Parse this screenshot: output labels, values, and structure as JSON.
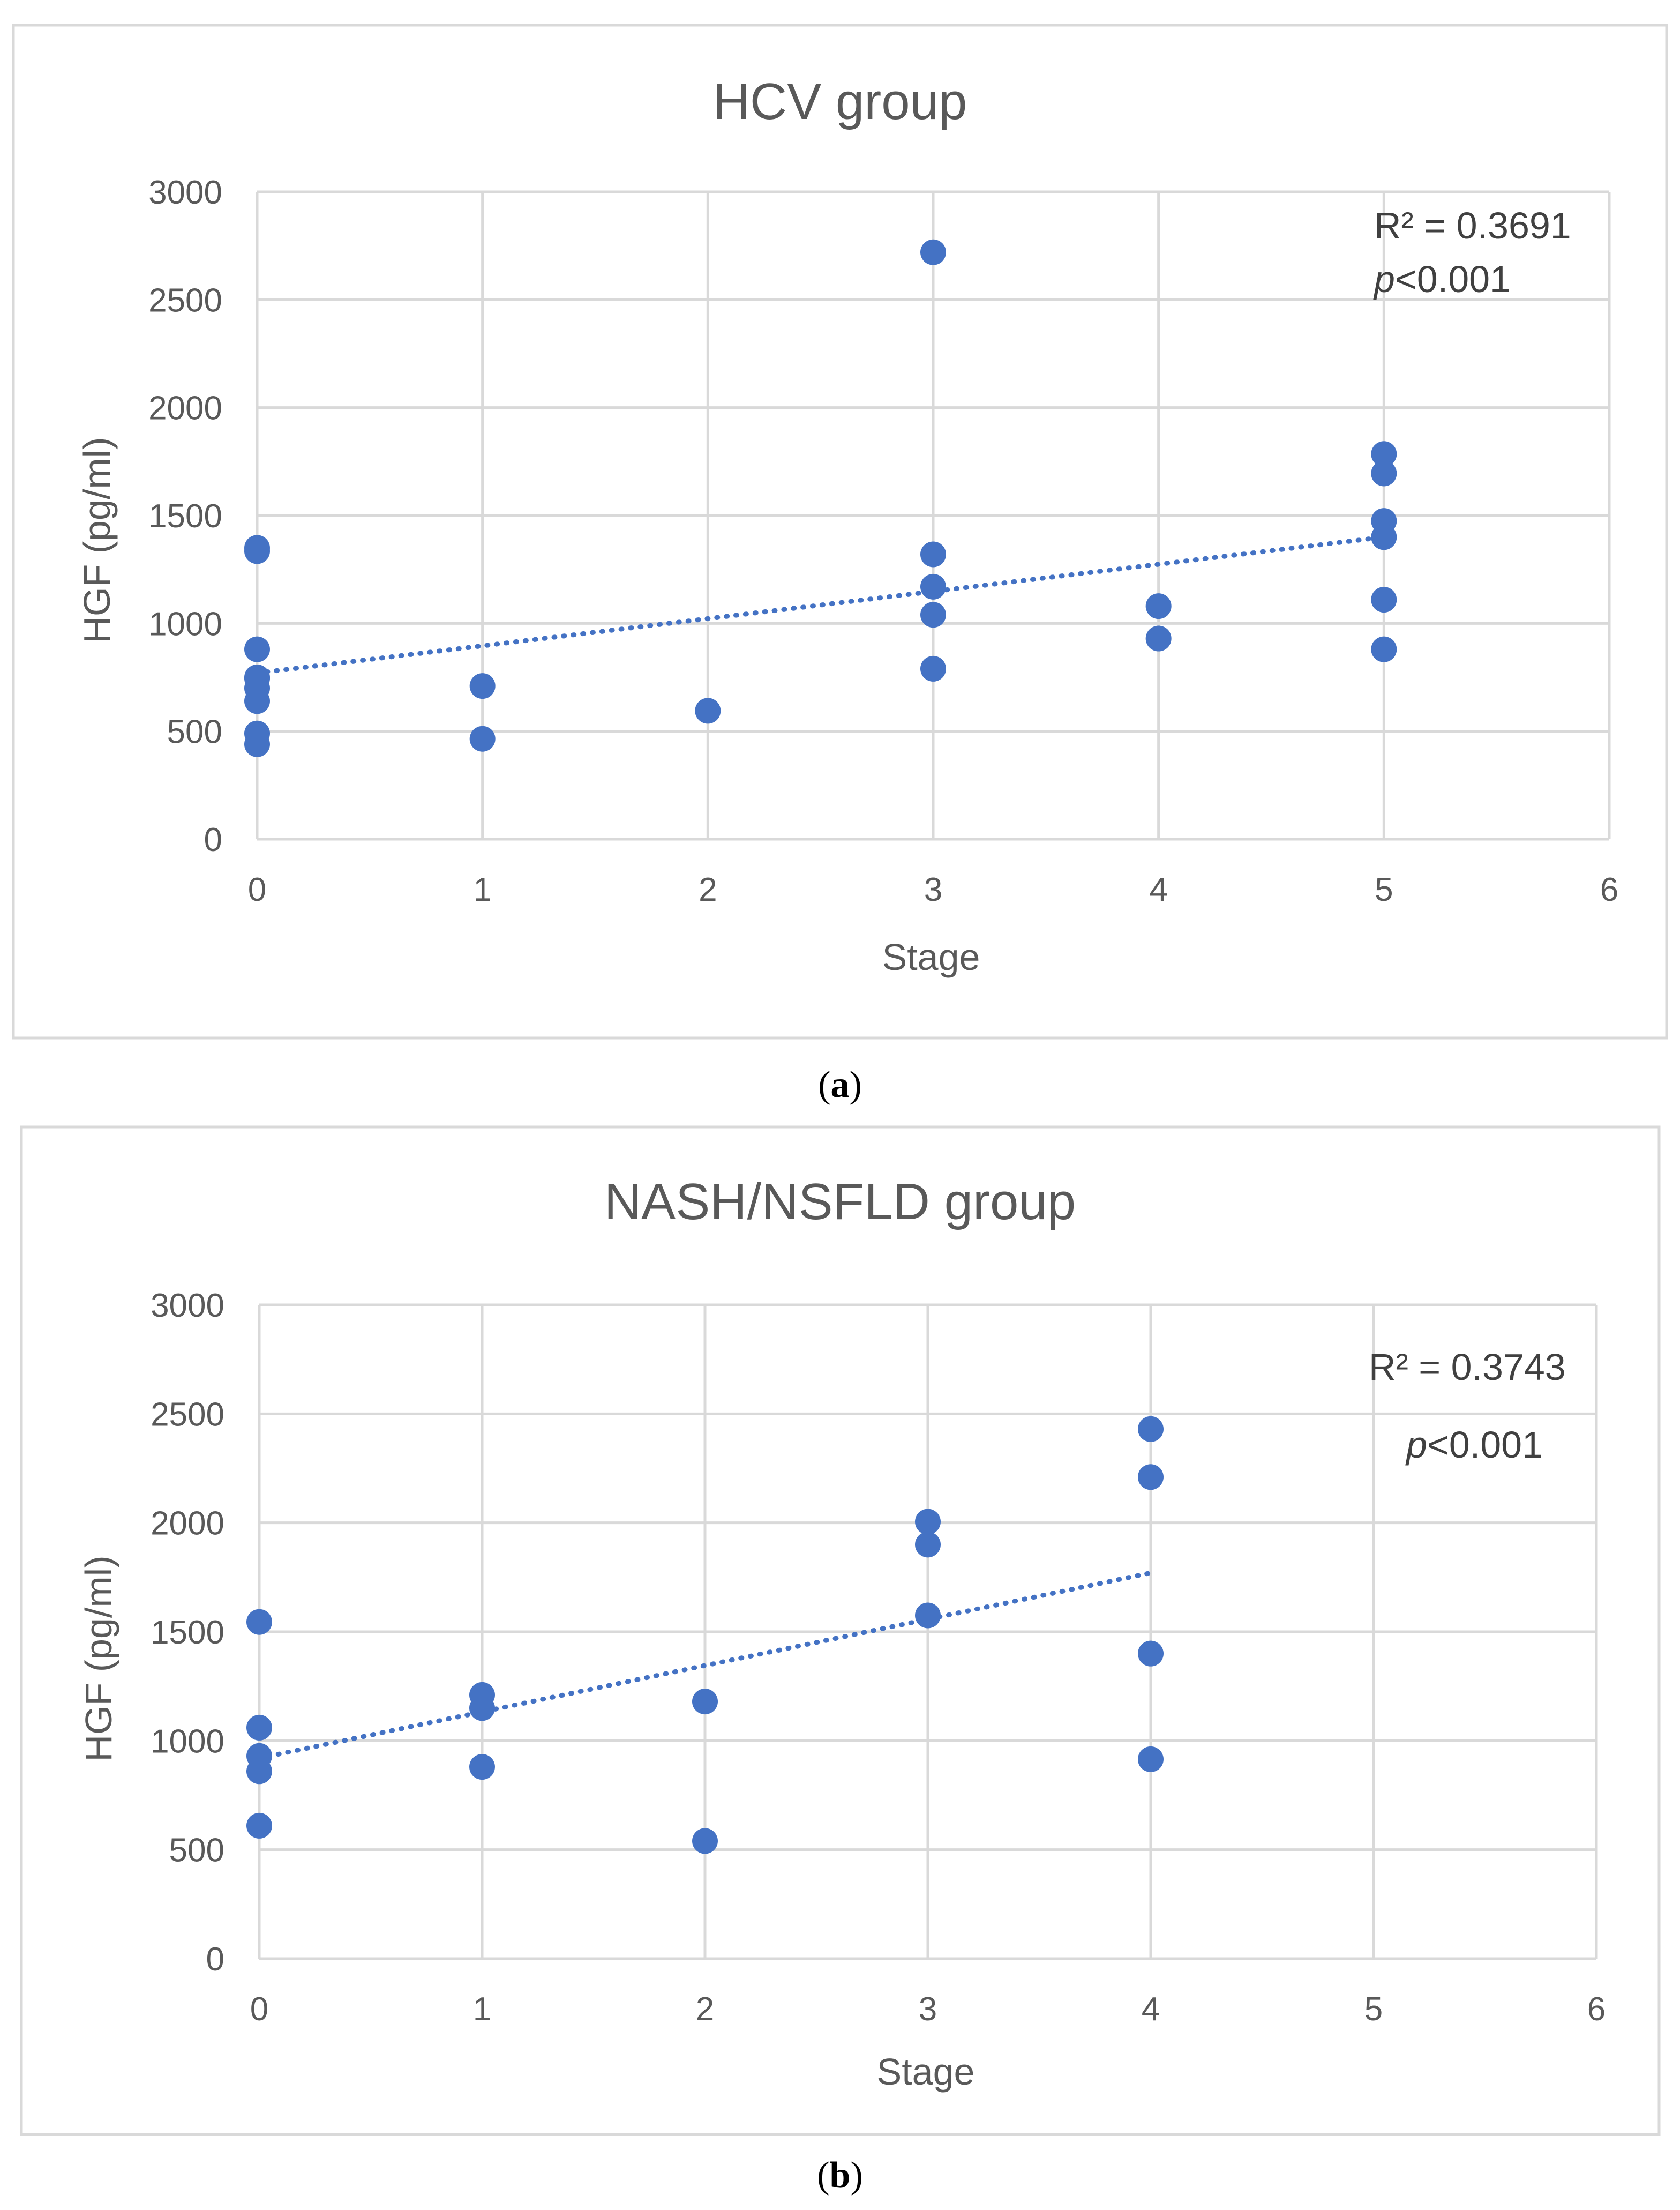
{
  "captions": [
    "(a)",
    "(b)"
  ],
  "caption_letters": [
    "a",
    "b"
  ],
  "chart_data": [
    {
      "type": "scatter",
      "title": "HCV group",
      "xlabel": "Stage",
      "ylabel": "HGF (pg/ml)",
      "xlim": [
        0,
        6
      ],
      "ylim": [
        0,
        3000
      ],
      "xticks": [
        0,
        1,
        2,
        3,
        4,
        5,
        6
      ],
      "yticks": [
        0,
        500,
        1000,
        1500,
        2000,
        2500,
        3000
      ],
      "series": [
        {
          "name": "HGF",
          "x": [
            0,
            0,
            0,
            0,
            0,
            0,
            0,
            0,
            0,
            1,
            1,
            2,
            3,
            3,
            3,
            3,
            3,
            4,
            4,
            5,
            5,
            5,
            5,
            5,
            5
          ],
          "y": [
            1350,
            1335,
            880,
            750,
            700,
            640,
            490,
            440,
            745,
            710,
            465,
            595,
            2720,
            1320,
            1170,
            1040,
            790,
            1080,
            930,
            1785,
            1695,
            1475,
            1400,
            1110,
            880
          ]
        }
      ],
      "trendline": {
        "type": "linear",
        "x": [
          0,
          5
        ],
        "y": [
          770,
          1400
        ]
      },
      "annotations": {
        "r2_label": "R² = 0.3691",
        "p_italic": "p",
        "p_rest": "<0.001"
      }
    },
    {
      "type": "scatter",
      "title": "NASH/NSFLD group",
      "xlabel": "Stage",
      "ylabel": "HGF (pg/ml)",
      "xlim": [
        0,
        6
      ],
      "ylim": [
        0,
        3000
      ],
      "xticks": [
        0,
        1,
        2,
        3,
        4,
        5,
        6
      ],
      "yticks": [
        0,
        500,
        1000,
        1500,
        2000,
        2500,
        3000
      ],
      "series": [
        {
          "name": "HGF",
          "x": [
            0,
            0,
            0,
            0,
            0,
            1,
            1,
            1,
            2,
            2,
            3,
            3,
            3,
            4,
            4,
            4,
            4
          ],
          "y": [
            1545,
            1060,
            930,
            860,
            610,
            1210,
            1150,
            880,
            1180,
            540,
            2005,
            1900,
            1575,
            2430,
            2210,
            1400,
            915
          ]
        }
      ],
      "trendline": {
        "type": "linear",
        "x": [
          0,
          4
        ],
        "y": [
          920,
          1770
        ]
      },
      "annotations": {
        "r2_label": "R² = 0.3743",
        "p_italic": "p",
        "p_rest": "<0.001"
      }
    }
  ]
}
